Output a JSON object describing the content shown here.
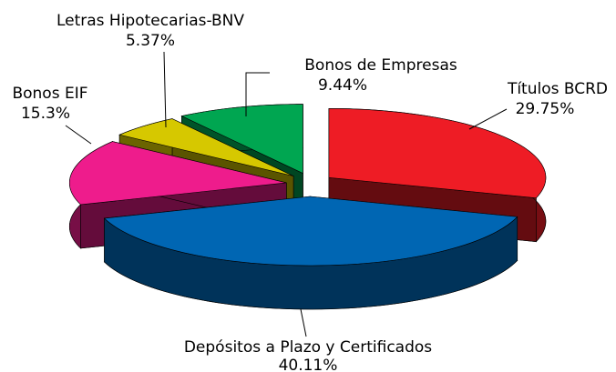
{
  "chart_data": {
    "type": "pie3d",
    "categories": [
      "Títulos BCRD",
      "Depósitos a Plazo y Certificados",
      "Bonos EIF",
      "Letras Hipotecarias-BNV",
      "Bonos de Empresas"
    ],
    "values": [
      29.75,
      40.11,
      15.3,
      5.37,
      9.44
    ],
    "value_labels": [
      "29.75%",
      "40.11%",
      "15.3%",
      "5.37%",
      "9.44%"
    ],
    "colors": [
      "#ee1c25",
      "#0066b3",
      "#ee1c8c",
      "#d6c800",
      "#00a651"
    ]
  }
}
